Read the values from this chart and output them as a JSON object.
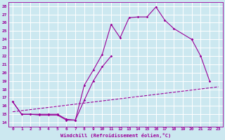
{
  "xlabel": "Windchill (Refroidissement éolien,°C)",
  "bg_color": "#cce8f0",
  "line_color": "#990099",
  "grid_color": "#ffffff",
  "xlim": [
    -0.5,
    23.5
  ],
  "ylim": [
    13.5,
    28.5
  ],
  "yticks": [
    14,
    15,
    16,
    17,
    18,
    19,
    20,
    21,
    22,
    23,
    24,
    25,
    26,
    27,
    28
  ],
  "xticks": [
    0,
    1,
    2,
    3,
    4,
    5,
    6,
    7,
    8,
    9,
    10,
    11,
    12,
    13,
    14,
    15,
    16,
    17,
    18,
    19,
    20,
    21,
    22,
    23
  ],
  "line1_x": [
    0,
    1,
    2,
    3,
    4,
    5,
    6,
    7,
    8,
    9,
    10,
    11,
    12,
    13,
    14,
    15,
    16,
    17,
    18,
    20,
    21,
    22
  ],
  "line1_y": [
    16.5,
    15.0,
    15.0,
    15.0,
    15.0,
    15.0,
    14.4,
    14.3,
    18.5,
    20.3,
    22.2,
    25.8,
    24.2,
    26.6,
    26.7,
    26.7,
    27.9,
    26.3,
    25.3,
    24.0,
    22.0,
    19.0
  ],
  "line1_seg1_end": 19,
  "line2_x": [
    0,
    1,
    2,
    3,
    4,
    5,
    6,
    7,
    8,
    9,
    10,
    11
  ],
  "line2_y": [
    16.5,
    15.0,
    15.0,
    14.9,
    14.9,
    14.9,
    14.3,
    14.3,
    16.7,
    19.0,
    20.7,
    22.0
  ],
  "line3_x": [
    0,
    23
  ],
  "line3_y": [
    15.3,
    18.3
  ]
}
